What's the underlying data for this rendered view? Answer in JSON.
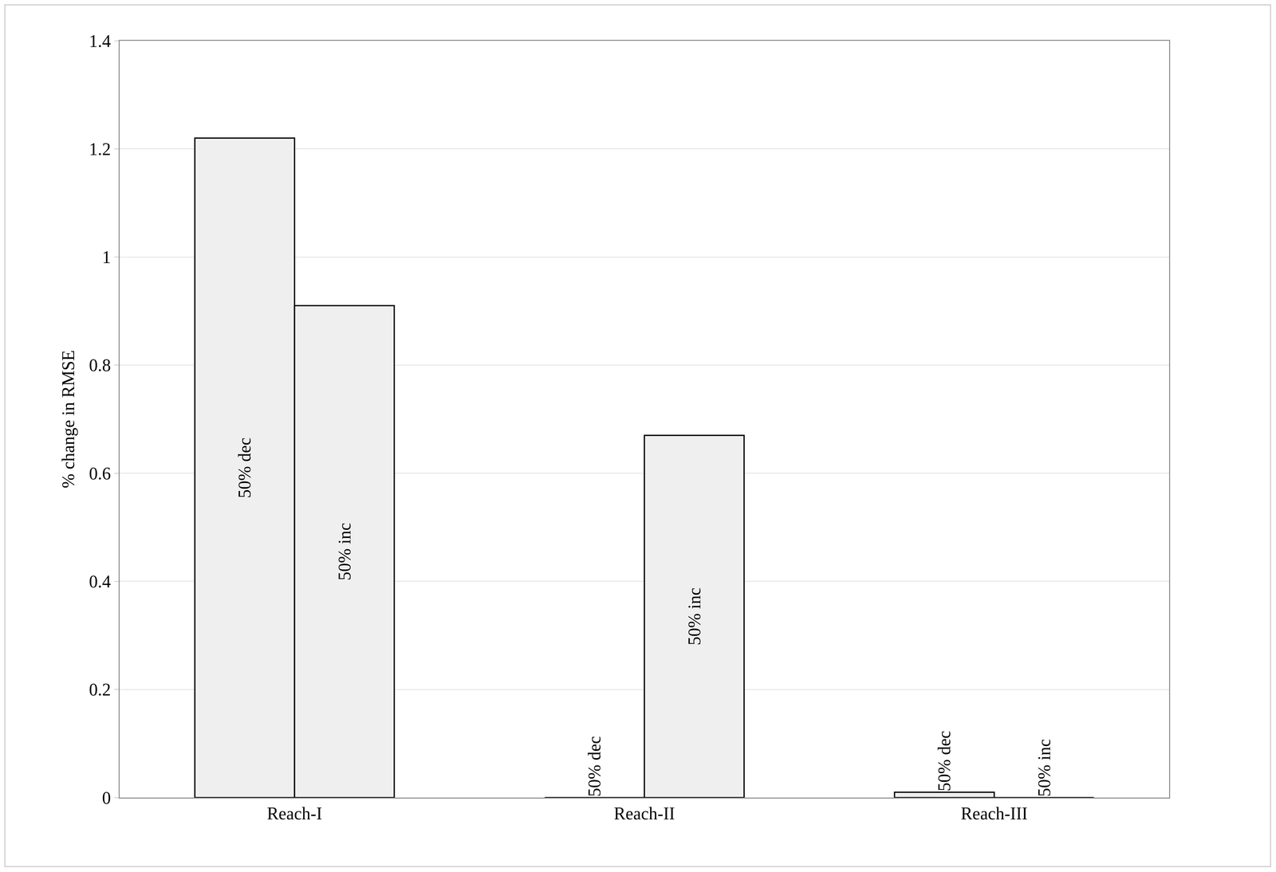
{
  "chart_data": {
    "type": "bar",
    "y_label": "% change in RMSE",
    "categories": [
      "Reach-I",
      "Reach-II",
      "Reach-III"
    ],
    "series": [
      {
        "name": "50% dec",
        "color": "#efefef",
        "values": [
          1.22,
          0,
          0.01
        ]
      },
      {
        "name": "50% inc",
        "color": "#efefef",
        "values": [
          0.91,
          0.67,
          0
        ]
      }
    ],
    "ylim": [
      0,
      1.4
    ],
    "yticks": [
      0,
      0.2,
      0.4,
      0.6,
      0.8,
      1,
      1.2,
      1.4
    ],
    "grid": true
  }
}
